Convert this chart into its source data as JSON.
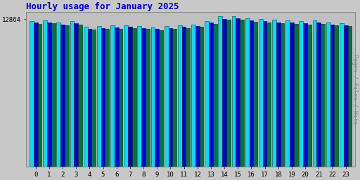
{
  "title": "Hourly usage for January 2025",
  "ylabel": "Pages / Files / Hits",
  "hours": [
    0,
    1,
    2,
    3,
    4,
    5,
    6,
    7,
    8,
    9,
    10,
    11,
    12,
    13,
    14,
    15,
    16,
    17,
    18,
    19,
    20,
    21,
    22,
    23
  ],
  "max_label": "12864",
  "hits": [
    12700,
    12750,
    12550,
    12700,
    12200,
    12250,
    12300,
    12350,
    12250,
    12150,
    12250,
    12300,
    12400,
    12700,
    13100,
    13150,
    12950,
    12900,
    12800,
    12750,
    12700,
    12750,
    12600,
    12500
  ],
  "files": [
    12550,
    12600,
    12400,
    12500,
    12050,
    12100,
    12150,
    12200,
    12100,
    12000,
    12100,
    12200,
    12280,
    12550,
    12900,
    12950,
    12750,
    12700,
    12600,
    12550,
    12500,
    12550,
    12400,
    12350
  ],
  "pages": [
    12450,
    12500,
    12300,
    12400,
    11950,
    12000,
    12050,
    12100,
    12000,
    11900,
    12000,
    12100,
    12180,
    12450,
    12800,
    12850,
    12650,
    12600,
    12500,
    12450,
    12400,
    12450,
    12300,
    12250
  ],
  "hits_color": "#00ddff",
  "files_color": "#0000cc",
  "pages_color": "#007733",
  "bg_color": "#c8c8c8",
  "plot_bg_color": "#c0c0c0",
  "title_color": "#0000cc",
  "ylabel_color": "#888888",
  "bar_width": 0.3,
  "ylim_min": 0,
  "ylim_max": 13500,
  "ytick_val": 12864
}
